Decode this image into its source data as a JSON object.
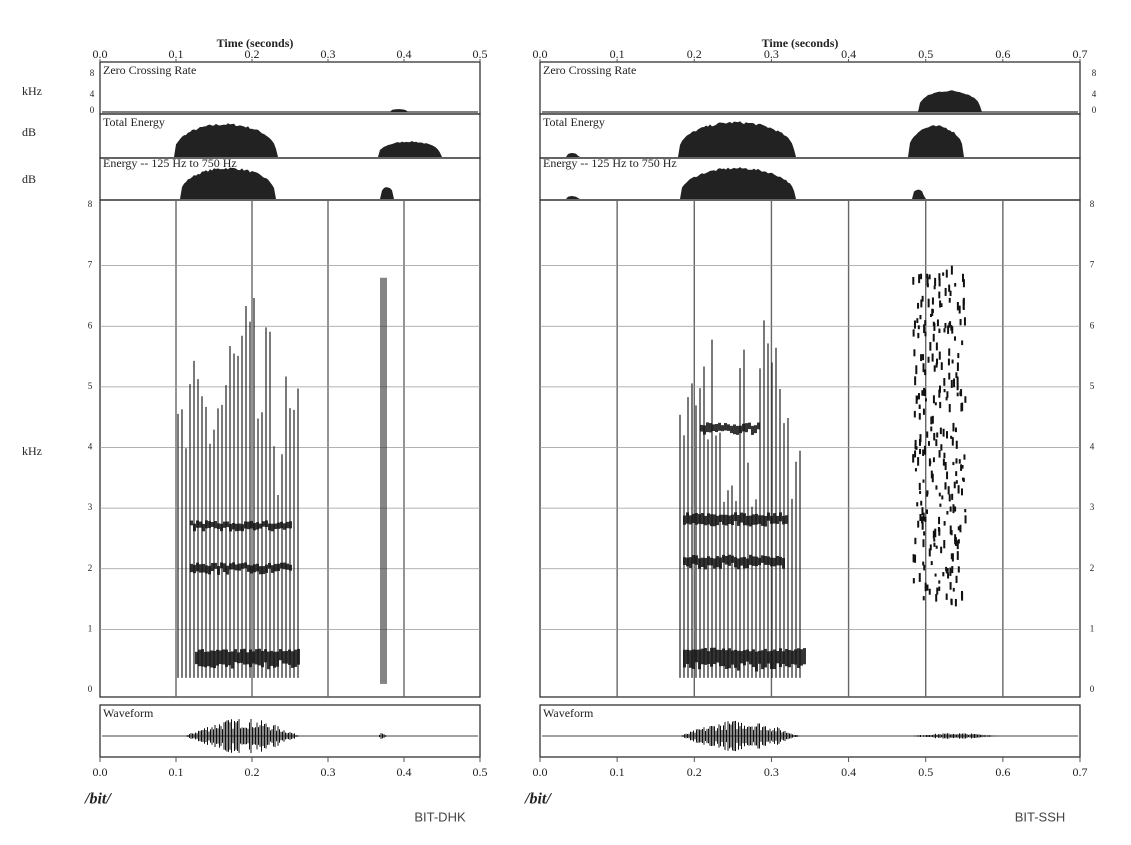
{
  "side_labels": [
    "kHz",
    "dB",
    "dB",
    "kHz"
  ],
  "zcr_scale": [
    "8",
    "4",
    "0"
  ],
  "panels": [
    {
      "time_axis_title": "Time (seconds)",
      "time_ticks": [
        "0.0",
        "0.1",
        "0.2",
        "0.3",
        "0.4",
        "0.5"
      ],
      "tracks": [
        "Zero Crossing Rate",
        "Total Energy",
        "Energy -- 125 Hz to 750 Hz",
        "Waveform"
      ],
      "freq_ticks": [
        "0",
        "1",
        "2",
        "3",
        "4",
        "5",
        "6",
        "7",
        "8"
      ],
      "transcription": "/bit/",
      "label": "BIT-DHK"
    },
    {
      "time_axis_title": "Time (seconds)",
      "time_ticks": [
        "0.0",
        "0.1",
        "0.2",
        "0.3",
        "0.4",
        "0.5",
        "0.6",
        "0.7"
      ],
      "tracks": [
        "Zero Crossing Rate",
        "Total Energy",
        "Energy -- 125 Hz to 750 Hz",
        "Waveform"
      ],
      "freq_ticks": [
        "0",
        "1",
        "2",
        "3",
        "4",
        "5",
        "6",
        "7",
        "8"
      ],
      "transcription": "/bit/",
      "label": "BIT-SSH"
    }
  ]
}
